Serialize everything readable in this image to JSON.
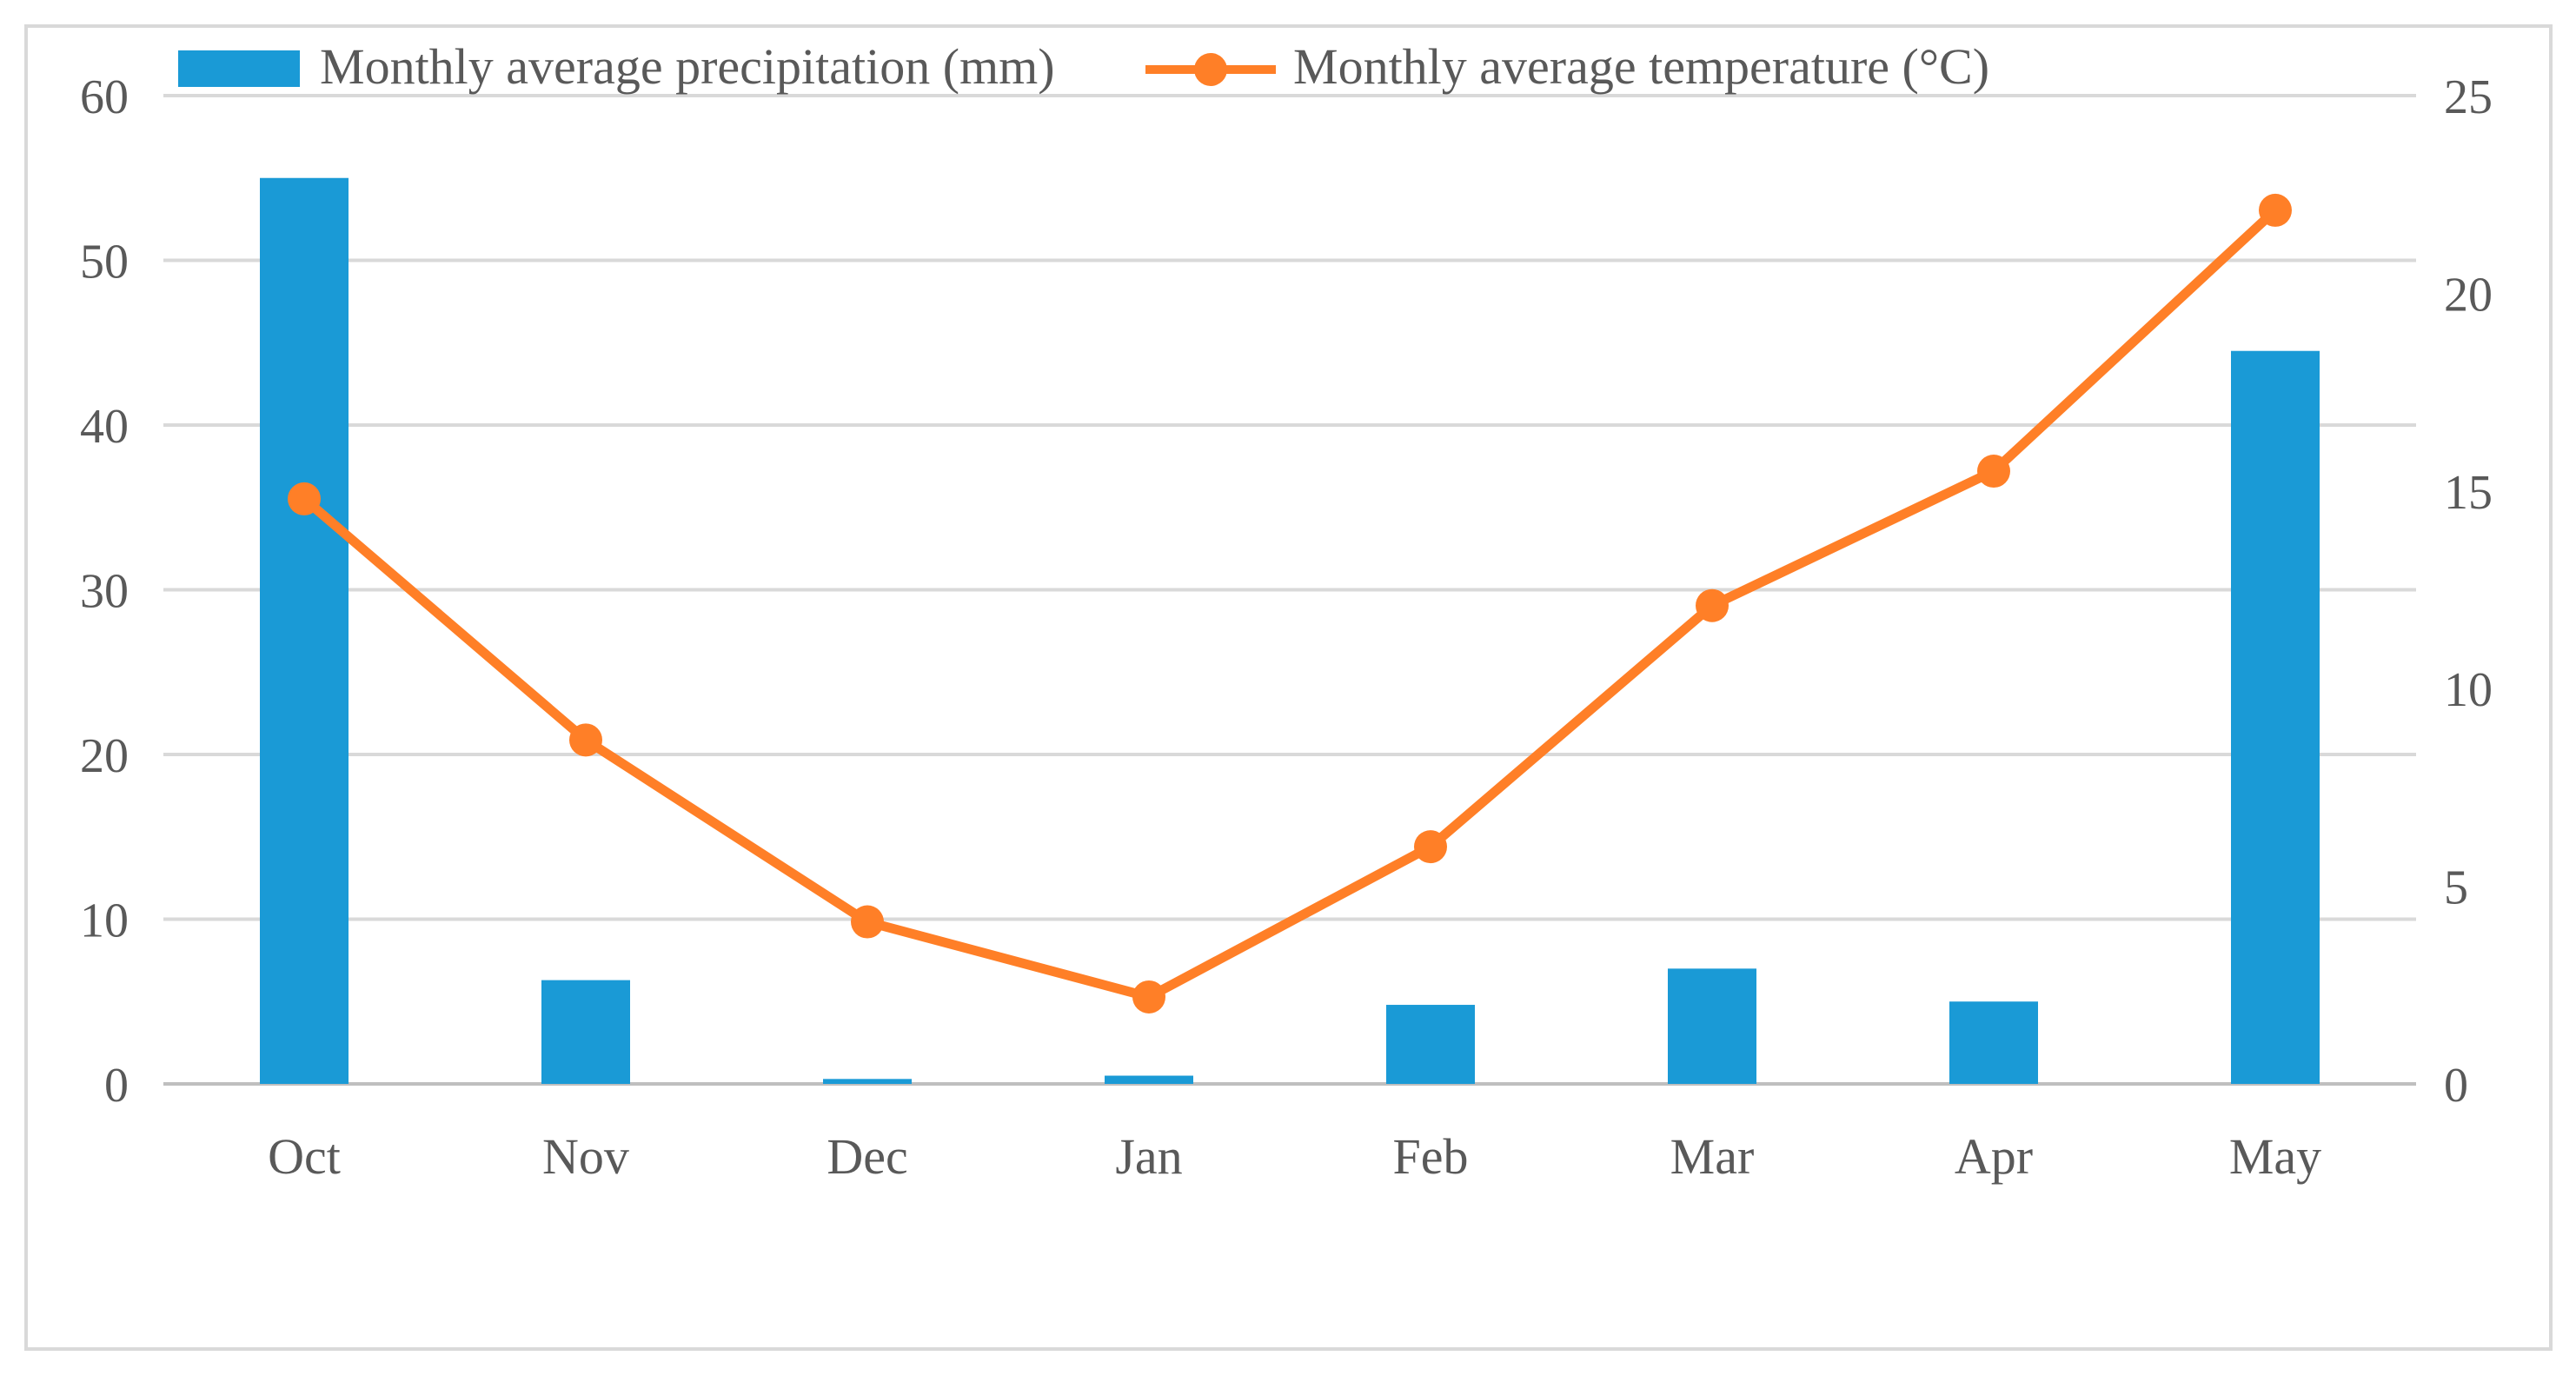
{
  "chart_data": {
    "type": "bar+line",
    "categories": [
      "Oct",
      "Nov",
      "Dec",
      "Jan",
      "Feb",
      "Mar",
      "Apr",
      "May"
    ],
    "series": [
      {
        "name": "Monthly average precipitation (mm)",
        "type": "bar",
        "axis": "left",
        "color": "#1a9ad6",
        "values": [
          55,
          6.3,
          0.3,
          0.5,
          4.8,
          7,
          5,
          44.5
        ]
      },
      {
        "name": "Monthly average temperature (°C)",
        "type": "line",
        "axis": "right",
        "color": "#ff7f27",
        "values": [
          14.8,
          8.7,
          4.1,
          2.2,
          6,
          12.1,
          15.5,
          22.1
        ]
      }
    ],
    "y_left": {
      "ylim": [
        0,
        60
      ],
      "ticks": [
        "0",
        "10",
        "20",
        "30",
        "40",
        "50",
        "60"
      ]
    },
    "y_right": {
      "ylim": [
        0,
        25
      ],
      "ticks": [
        "0",
        "5",
        "10",
        "15",
        "20",
        "25"
      ]
    },
    "grid": true,
    "legend_position": "top-left"
  }
}
